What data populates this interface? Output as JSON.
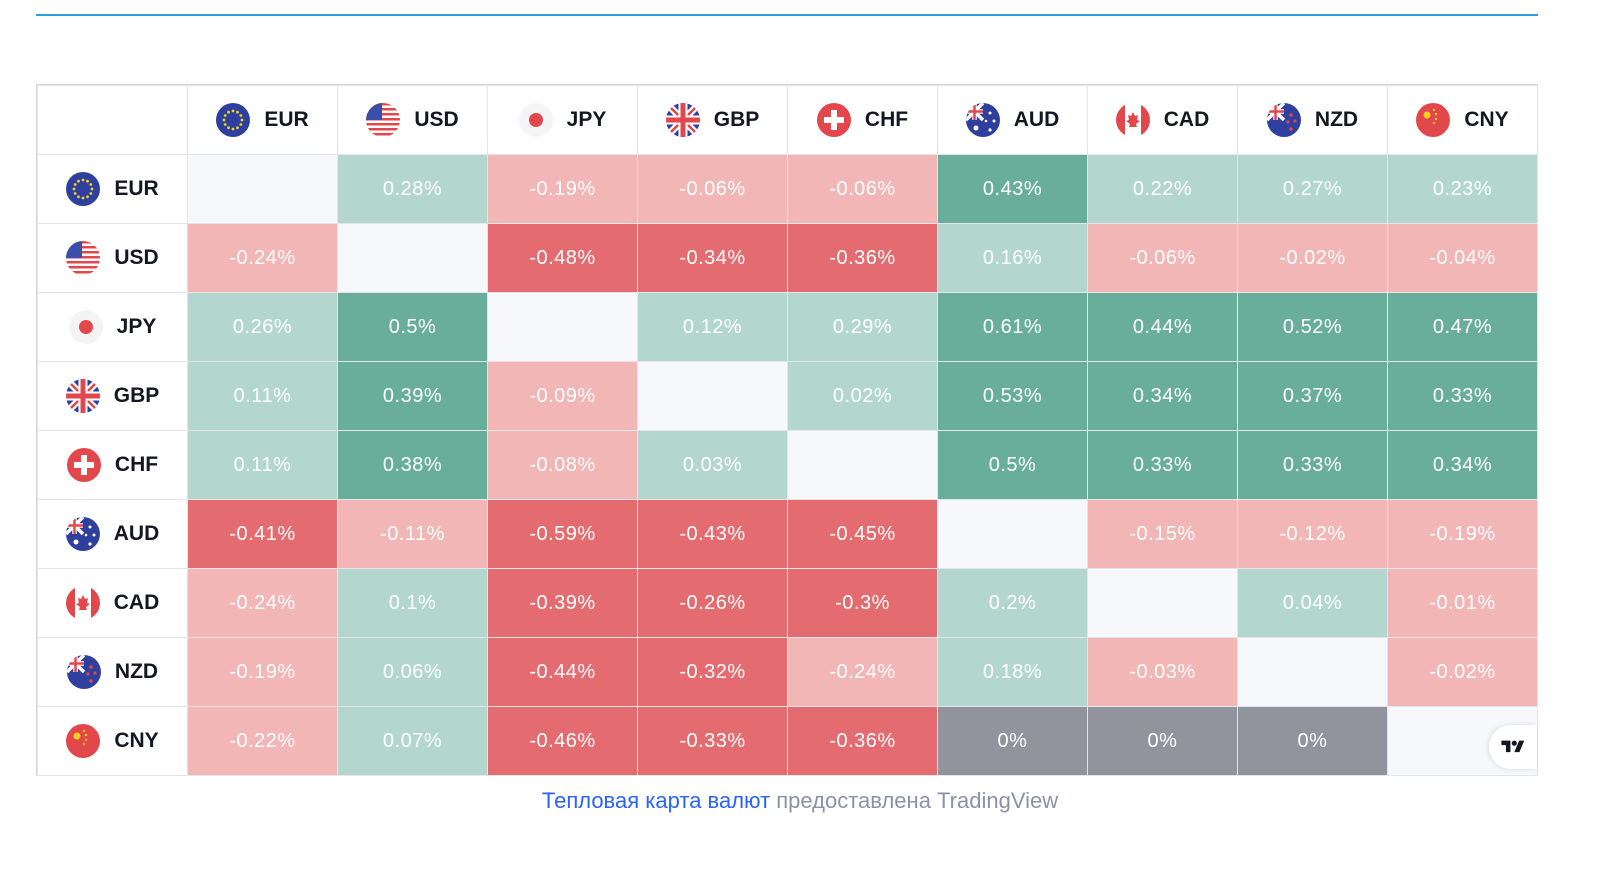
{
  "chart_data": {
    "type": "heatmap",
    "currencies": [
      "EUR",
      "USD",
      "JPY",
      "GBP",
      "CHF",
      "AUD",
      "CAD",
      "NZD",
      "CNY"
    ],
    "unit": "%",
    "rows": [
      {
        "currency": "EUR",
        "values": [
          null,
          0.28,
          -0.19,
          -0.06,
          -0.06,
          0.43,
          0.22,
          0.27,
          0.23
        ]
      },
      {
        "currency": "USD",
        "values": [
          -0.24,
          null,
          -0.48,
          -0.34,
          -0.36,
          0.16,
          -0.06,
          -0.02,
          -0.04
        ]
      },
      {
        "currency": "JPY",
        "values": [
          0.26,
          0.5,
          null,
          0.12,
          0.29,
          0.61,
          0.44,
          0.52,
          0.47
        ]
      },
      {
        "currency": "GBP",
        "values": [
          0.11,
          0.39,
          -0.09,
          null,
          0.02,
          0.53,
          0.34,
          0.37,
          0.33
        ]
      },
      {
        "currency": "CHF",
        "values": [
          0.11,
          0.38,
          -0.08,
          0.03,
          null,
          0.5,
          0.33,
          0.33,
          0.34
        ]
      },
      {
        "currency": "AUD",
        "values": [
          -0.41,
          -0.11,
          -0.59,
          -0.43,
          -0.45,
          null,
          -0.15,
          -0.12,
          -0.19
        ]
      },
      {
        "currency": "CAD",
        "values": [
          -0.24,
          0.1,
          -0.39,
          -0.26,
          -0.3,
          0.2,
          null,
          0.04,
          -0.01
        ]
      },
      {
        "currency": "NZD",
        "values": [
          -0.19,
          0.06,
          -0.44,
          -0.32,
          -0.24,
          0.18,
          -0.03,
          null,
          -0.02
        ]
      },
      {
        "currency": "CNY",
        "values": [
          -0.22,
          0.07,
          -0.46,
          -0.33,
          -0.36,
          0,
          0,
          0,
          null
        ]
      }
    ],
    "colors": {
      "positive_strong": "#68ae9b",
      "positive_weak": "#b3d7cf",
      "negative_strong": "#e46c70",
      "negative_weak": "#f2b6b7",
      "zero": "#91949c",
      "diagonal": "#f7f8fc"
    }
  },
  "flags": {
    "EUR": "eu-flag-icon",
    "USD": "us-flag-icon",
    "JPY": "japan-flag-icon",
    "GBP": "uk-flag-icon",
    "CHF": "swiss-flag-icon",
    "AUD": "australia-flag-icon",
    "CAD": "canada-flag-icon",
    "NZD": "new-zealand-flag-icon",
    "CNY": "china-flag-icon"
  },
  "logo": "tradingview-logo-icon",
  "caption": {
    "link_text": "Тепловая карта валют",
    "rest_text": " предоставлена TradingView"
  }
}
